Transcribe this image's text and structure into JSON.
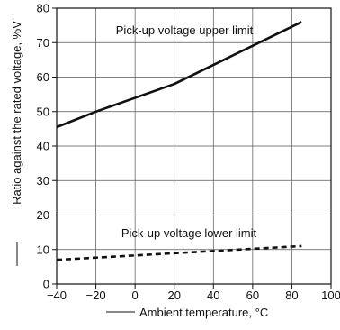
{
  "chart_data": {
    "type": "line",
    "title": "",
    "xlabel": "Ambient temperature, °C",
    "ylabel": "Ratio against the rated voltage, %V",
    "xlim": [
      -40,
      100
    ],
    "ylim": [
      0,
      80
    ],
    "x_ticks": [
      -40,
      -20,
      0,
      20,
      40,
      60,
      80,
      100
    ],
    "y_ticks": [
      0,
      10,
      20,
      30,
      40,
      50,
      60,
      70,
      80
    ],
    "grid": true,
    "series": [
      {
        "name": "Pick-up voltage upper limit",
        "style": "solid",
        "points": [
          [
            -40,
            45.5
          ],
          [
            -20,
            50
          ],
          [
            20,
            58
          ],
          [
            85,
            76
          ]
        ]
      },
      {
        "name": "Pick-up voltage lower limit",
        "style": "dashed",
        "points": [
          [
            -40,
            7
          ],
          [
            85,
            11
          ]
        ]
      }
    ],
    "annotations": [
      {
        "text": "Pick-up voltage upper limit"
      },
      {
        "text": "Pick-up voltage lower limit"
      }
    ]
  }
}
